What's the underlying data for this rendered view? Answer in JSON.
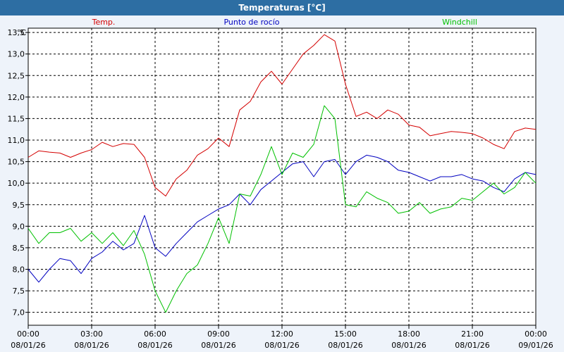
{
  "window_title": "Temperaturas [°C]",
  "chart_data": {
    "type": "line",
    "title": "Temperaturas [°C]",
    "ylabel": "°C",
    "ylim": [
      6.7,
      13.6
    ],
    "yticks": [
      7.0,
      7.5,
      8.0,
      8.5,
      9.0,
      9.5,
      10.0,
      10.5,
      11.0,
      11.5,
      12.0,
      12.5,
      13.0,
      13.5
    ],
    "ytick_labels": [
      "7,0",
      "7,5",
      "8,0",
      "8,5",
      "9,0",
      "9,5",
      "10,0",
      "10,5",
      "11,0",
      "11,5",
      "12,0",
      "12,5",
      "13,0",
      "13,5"
    ],
    "xlim": [
      "08/01/26 00:00",
      "09/01/26 00:00"
    ],
    "xticks": [
      {
        "time": "00:00",
        "date": "08/01/26"
      },
      {
        "time": "03:00",
        "date": "08/01/26"
      },
      {
        "time": "06:00",
        "date": "08/01/26"
      },
      {
        "time": "09:00",
        "date": "08/01/26"
      },
      {
        "time": "12:00",
        "date": "08/01/26"
      },
      {
        "time": "15:00",
        "date": "08/01/26"
      },
      {
        "time": "18:00",
        "date": "08/01/26"
      },
      {
        "time": "21:00",
        "date": "08/01/26"
      },
      {
        "time": "00:00",
        "date": "09/01/26"
      }
    ],
    "grid": true,
    "legend_placement": "top",
    "x": [
      "00:00",
      "00:30",
      "01:00",
      "01:30",
      "02:00",
      "02:30",
      "03:00",
      "03:30",
      "04:00",
      "04:30",
      "05:00",
      "05:30",
      "06:00",
      "06:30",
      "07:00",
      "07:30",
      "08:00",
      "08:30",
      "09:00",
      "09:30",
      "10:00",
      "10:30",
      "11:00",
      "11:30",
      "12:00",
      "12:30",
      "13:00",
      "13:30",
      "14:00",
      "14:30",
      "15:00",
      "15:30",
      "16:00",
      "16:30",
      "17:00",
      "17:30",
      "18:00",
      "18:30",
      "19:00",
      "19:30",
      "20:00",
      "20:30",
      "21:00",
      "21:30",
      "22:00",
      "22:30",
      "23:00",
      "23:30",
      "00:00"
    ],
    "series": [
      {
        "name": "Temp.",
        "color": "#d40000",
        "values": [
          10.6,
          10.75,
          10.72,
          10.7,
          10.6,
          10.7,
          10.78,
          10.95,
          10.85,
          10.92,
          10.9,
          10.6,
          9.9,
          9.7,
          10.1,
          10.3,
          10.65,
          10.8,
          11.05,
          10.85,
          11.7,
          11.9,
          12.35,
          12.6,
          12.3,
          12.65,
          13.0,
          13.2,
          13.45,
          13.3,
          12.3,
          11.55,
          11.65,
          11.5,
          11.7,
          11.6,
          11.35,
          11.3,
          11.1,
          11.15,
          11.2,
          11.18,
          11.15,
          11.05,
          10.9,
          10.8,
          11.2,
          11.28,
          11.25
        ]
      },
      {
        "name": "Punto de rocío",
        "color": "#0000c0",
        "values": [
          8.0,
          7.7,
          8.0,
          8.25,
          8.2,
          7.9,
          8.25,
          8.4,
          8.65,
          8.45,
          8.6,
          9.25,
          8.5,
          8.3,
          8.6,
          8.85,
          9.1,
          9.25,
          9.4,
          9.5,
          9.75,
          9.5,
          9.85,
          10.05,
          10.25,
          10.45,
          10.5,
          10.15,
          10.5,
          10.55,
          10.2,
          10.5,
          10.65,
          10.6,
          10.5,
          10.3,
          10.25,
          10.15,
          10.05,
          10.15,
          10.15,
          10.2,
          10.1,
          10.05,
          9.9,
          9.8,
          10.1,
          10.25,
          10.2
        ]
      },
      {
        "name": "Windchill",
        "color": "#00c000",
        "values": [
          8.95,
          8.6,
          8.85,
          8.85,
          8.95,
          8.65,
          8.85,
          8.6,
          8.85,
          8.55,
          8.9,
          8.35,
          7.5,
          7.0,
          7.5,
          7.9,
          8.1,
          8.6,
          9.2,
          8.6,
          9.75,
          9.7,
          10.2,
          10.85,
          10.2,
          10.7,
          10.6,
          10.9,
          11.8,
          11.5,
          9.5,
          9.45,
          9.8,
          9.65,
          9.55,
          9.3,
          9.35,
          9.55,
          9.3,
          9.4,
          9.45,
          9.65,
          9.6,
          9.8,
          10.0,
          9.75,
          9.9,
          10.25,
          10.0
        ]
      }
    ]
  }
}
